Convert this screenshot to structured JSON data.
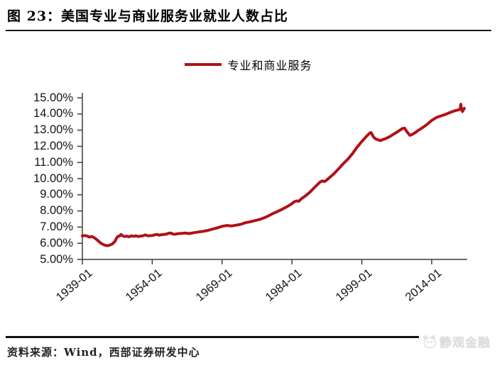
{
  "header": {
    "title": "图 23：美国专业与商业服务业就业人数占比"
  },
  "footer": {
    "source": "资料来源：Wind，西部证券研发中心",
    "watermark": {
      "text": "静观金融",
      "icon": "panda-icon"
    }
  },
  "chart_data": {
    "type": "line",
    "title": "图 23：美国专业与商业服务业就业人数占比",
    "legend_position": "top-center",
    "line_color": "#b01116",
    "axis_color": "#3c3c3c",
    "grid": false,
    "ylim": [
      5,
      15
    ],
    "y_ticks": [
      "15.00%",
      "14.00%",
      "13.00%",
      "12.00%",
      "11.00%",
      "10.00%",
      "9.00%",
      "8.00%",
      "7.00%",
      "6.00%",
      "5.00%"
    ],
    "x_ticks": [
      "1939-01",
      "1954-01",
      "1969-01",
      "1984-01",
      "1999-01",
      "2014-01"
    ],
    "x_tick_years": [
      1939,
      1954,
      1969,
      1984,
      1999,
      2014
    ],
    "series": [
      {
        "name": "专业和商业服务",
        "unit": "%",
        "points": [
          [
            1939.0,
            6.45
          ],
          [
            1939.5,
            6.48
          ],
          [
            1940.0,
            6.45
          ],
          [
            1940.5,
            6.38
          ],
          [
            1941.0,
            6.42
          ],
          [
            1941.5,
            6.35
          ],
          [
            1942.0,
            6.25
          ],
          [
            1942.5,
            6.12
          ],
          [
            1943.0,
            6.0
          ],
          [
            1943.5,
            5.92
          ],
          [
            1944.0,
            5.87
          ],
          [
            1944.5,
            5.85
          ],
          [
            1945.0,
            5.9
          ],
          [
            1945.5,
            5.97
          ],
          [
            1946.0,
            6.12
          ],
          [
            1946.3,
            6.3
          ],
          [
            1946.6,
            6.42
          ],
          [
            1947.0,
            6.45
          ],
          [
            1947.3,
            6.55
          ],
          [
            1947.7,
            6.45
          ],
          [
            1948.0,
            6.42
          ],
          [
            1948.5,
            6.44
          ],
          [
            1949.0,
            6.4
          ],
          [
            1949.5,
            6.46
          ],
          [
            1950.0,
            6.43
          ],
          [
            1950.5,
            6.46
          ],
          [
            1951.0,
            6.42
          ],
          [
            1952.0,
            6.46
          ],
          [
            1952.5,
            6.52
          ],
          [
            1953.0,
            6.46
          ],
          [
            1954.0,
            6.48
          ],
          [
            1954.5,
            6.52
          ],
          [
            1955.0,
            6.55
          ],
          [
            1955.5,
            6.5
          ],
          [
            1956.0,
            6.53
          ],
          [
            1957.0,
            6.56
          ],
          [
            1957.5,
            6.62
          ],
          [
            1958.0,
            6.63
          ],
          [
            1958.5,
            6.56
          ],
          [
            1959.0,
            6.56
          ],
          [
            1959.5,
            6.6
          ],
          [
            1960.0,
            6.6
          ],
          [
            1961.0,
            6.63
          ],
          [
            1962.0,
            6.6
          ],
          [
            1963.0,
            6.66
          ],
          [
            1964.0,
            6.7
          ],
          [
            1965.0,
            6.74
          ],
          [
            1966.0,
            6.8
          ],
          [
            1967.0,
            6.88
          ],
          [
            1968.0,
            6.95
          ],
          [
            1969.0,
            7.05
          ],
          [
            1970.0,
            7.1
          ],
          [
            1971.0,
            7.07
          ],
          [
            1972.0,
            7.12
          ],
          [
            1973.0,
            7.17
          ],
          [
            1974.0,
            7.27
          ],
          [
            1975.0,
            7.33
          ],
          [
            1976.0,
            7.4
          ],
          [
            1977.0,
            7.47
          ],
          [
            1978.0,
            7.57
          ],
          [
            1979.0,
            7.7
          ],
          [
            1980.0,
            7.85
          ],
          [
            1981.0,
            7.98
          ],
          [
            1982.0,
            8.12
          ],
          [
            1983.0,
            8.27
          ],
          [
            1984.0,
            8.45
          ],
          [
            1984.5,
            8.57
          ],
          [
            1985.0,
            8.62
          ],
          [
            1985.5,
            8.6
          ],
          [
            1986.0,
            8.75
          ],
          [
            1987.0,
            8.95
          ],
          [
            1988.0,
            9.2
          ],
          [
            1989.0,
            9.5
          ],
          [
            1990.0,
            9.78
          ],
          [
            1990.5,
            9.86
          ],
          [
            1991.0,
            9.82
          ],
          [
            1991.5,
            9.92
          ],
          [
            1992.0,
            10.05
          ],
          [
            1993.0,
            10.3
          ],
          [
            1994.0,
            10.6
          ],
          [
            1995.0,
            10.92
          ],
          [
            1996.0,
            11.2
          ],
          [
            1997.0,
            11.55
          ],
          [
            1998.0,
            11.95
          ],
          [
            1999.0,
            12.3
          ],
          [
            2000.0,
            12.62
          ],
          [
            2000.7,
            12.82
          ],
          [
            2001.0,
            12.85
          ],
          [
            2001.5,
            12.58
          ],
          [
            2002.0,
            12.45
          ],
          [
            2002.5,
            12.4
          ],
          [
            2003.0,
            12.35
          ],
          [
            2003.5,
            12.42
          ],
          [
            2004.0,
            12.46
          ],
          [
            2005.0,
            12.6
          ],
          [
            2006.0,
            12.78
          ],
          [
            2007.0,
            12.96
          ],
          [
            2007.7,
            13.1
          ],
          [
            2008.2,
            13.12
          ],
          [
            2008.7,
            12.9
          ],
          [
            2009.3,
            12.68
          ],
          [
            2009.8,
            12.73
          ],
          [
            2010.5,
            12.85
          ],
          [
            2011.0,
            12.96
          ],
          [
            2012.0,
            13.15
          ],
          [
            2013.0,
            13.35
          ],
          [
            2014.0,
            13.6
          ],
          [
            2015.0,
            13.78
          ],
          [
            2016.0,
            13.88
          ],
          [
            2017.0,
            13.98
          ],
          [
            2018.0,
            14.1
          ],
          [
            2019.0,
            14.2
          ],
          [
            2019.7,
            14.25
          ],
          [
            2020.1,
            14.3
          ],
          [
            2020.25,
            14.6
          ],
          [
            2020.4,
            14.3
          ],
          [
            2020.6,
            14.15
          ],
          [
            2020.8,
            14.25
          ],
          [
            2021.0,
            14.35
          ]
        ]
      }
    ]
  }
}
